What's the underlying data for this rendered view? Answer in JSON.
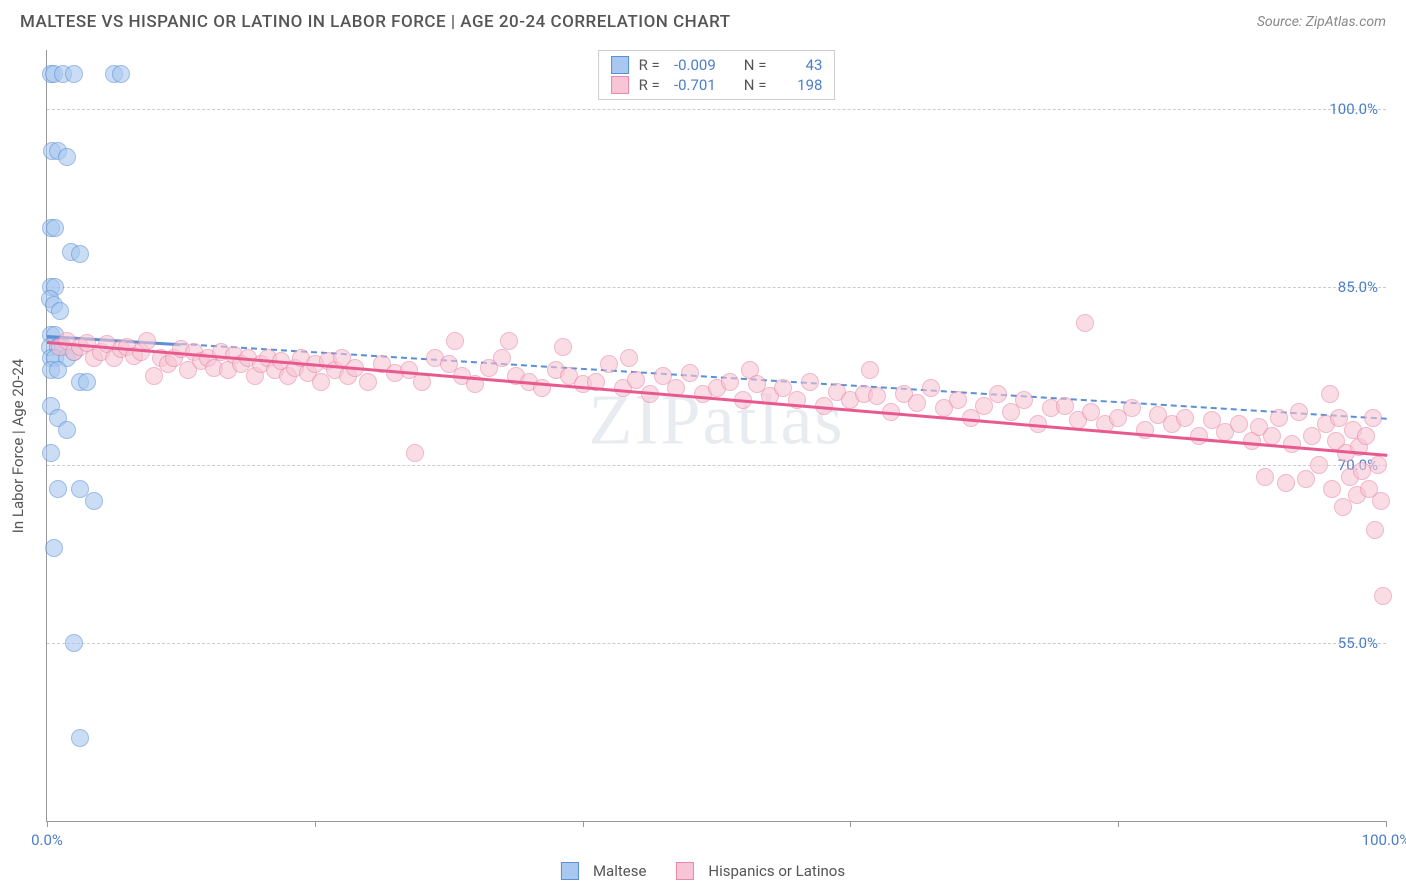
{
  "header": {
    "title": "MALTESE VS HISPANIC OR LATINO IN LABOR FORCE | AGE 20-24 CORRELATION CHART",
    "source": "Source: ZipAtlas.com"
  },
  "chart": {
    "type": "scatter",
    "y_axis_label": "In Labor Force | Age 20-24",
    "xlim": [
      0,
      100
    ],
    "ylim": [
      40,
      105
    ],
    "x_ticks": [
      0,
      20,
      40,
      60,
      80,
      100
    ],
    "x_tick_labels": {
      "0": "0.0%",
      "100": "100.0%"
    },
    "y_gridlines": [
      55,
      70,
      85,
      100
    ],
    "y_tick_labels": {
      "55": "55.0%",
      "70": "70.0%",
      "85": "85.0%",
      "100": "100.0%"
    },
    "background_color": "#ffffff",
    "grid_color": "#cccccc",
    "axis_color": "#999999",
    "tick_label_color": "#4a7ec9",
    "watermark_text": "ZIPatlas",
    "series": [
      {
        "name": "Maltese",
        "fill_color": "#a8c8f0",
        "stroke_color": "#5b8fd6",
        "R": "-0.009",
        "N": "43",
        "trend": {
          "x1": 0,
          "y1": 81,
          "x2": 100,
          "y2": 74,
          "dashed": true,
          "solid_until_x": 10,
          "color": "#5b8fd6"
        },
        "points": [
          [
            0.3,
            103
          ],
          [
            0.5,
            103
          ],
          [
            1.2,
            103
          ],
          [
            2,
            103
          ],
          [
            5,
            103
          ],
          [
            5.5,
            103
          ],
          [
            0.4,
            96.5
          ],
          [
            0.8,
            96.5
          ],
          [
            1.5,
            96
          ],
          [
            0.3,
            90
          ],
          [
            0.6,
            90
          ],
          [
            1.8,
            88
          ],
          [
            2.5,
            87.8
          ],
          [
            0.3,
            85
          ],
          [
            0.6,
            85
          ],
          [
            0.2,
            84
          ],
          [
            0.5,
            83.5
          ],
          [
            1,
            83
          ],
          [
            0.3,
            81
          ],
          [
            0.6,
            81
          ],
          [
            0.2,
            80
          ],
          [
            0.8,
            80
          ],
          [
            1.2,
            80
          ],
          [
            0.3,
            79
          ],
          [
            0.6,
            79
          ],
          [
            1.5,
            79
          ],
          [
            2,
            79.5
          ],
          [
            0.3,
            78
          ],
          [
            0.8,
            78
          ],
          [
            2.5,
            77
          ],
          [
            3,
            77
          ],
          [
            0.3,
            75
          ],
          [
            0.8,
            74
          ],
          [
            1.5,
            73
          ],
          [
            0.3,
            71
          ],
          [
            0.8,
            68
          ],
          [
            2.5,
            68
          ],
          [
            3.5,
            67
          ],
          [
            0.5,
            63
          ],
          [
            2,
            55
          ],
          [
            2.5,
            47
          ]
        ]
      },
      {
        "name": "Hispanics or Latinos",
        "fill_color": "#f7c5d5",
        "stroke_color": "#e888aa",
        "R": "-0.701",
        "N": "198",
        "trend": {
          "x1": 0,
          "y1": 80.5,
          "x2": 100,
          "y2": 71,
          "dashed": false,
          "color": "#e85a8f"
        },
        "points": [
          [
            1,
            80
          ],
          [
            1.5,
            80.5
          ],
          [
            2,
            79.5
          ],
          [
            2.5,
            80
          ],
          [
            3,
            80.3
          ],
          [
            3.5,
            79
          ],
          [
            4,
            79.5
          ],
          [
            4.5,
            80.2
          ],
          [
            5,
            79
          ],
          [
            5.5,
            79.8
          ],
          [
            6,
            80
          ],
          [
            6.5,
            79.2
          ],
          [
            7,
            79.5
          ],
          [
            7.5,
            80.5
          ],
          [
            8,
            77.5
          ],
          [
            8.5,
            79
          ],
          [
            9,
            78.5
          ],
          [
            9.5,
            79
          ],
          [
            10,
            79.8
          ],
          [
            10.5,
            78
          ],
          [
            11,
            79.5
          ],
          [
            11.5,
            78.8
          ],
          [
            12,
            79
          ],
          [
            12.5,
            78.2
          ],
          [
            13,
            79.5
          ],
          [
            13.5,
            78
          ],
          [
            14,
            79.3
          ],
          [
            14.5,
            78.5
          ],
          [
            15,
            79
          ],
          [
            15.5,
            77.5
          ],
          [
            16,
            78.5
          ],
          [
            16.5,
            79
          ],
          [
            17,
            78
          ],
          [
            17.5,
            78.8
          ],
          [
            18,
            77.5
          ],
          [
            18.5,
            78.2
          ],
          [
            19,
            79
          ],
          [
            19.5,
            77.8
          ],
          [
            20,
            78.5
          ],
          [
            20.5,
            77
          ],
          [
            21,
            78.8
          ],
          [
            21.5,
            78
          ],
          [
            22,
            79
          ],
          [
            22.5,
            77.5
          ],
          [
            23,
            78.2
          ],
          [
            24,
            77
          ],
          [
            25,
            78.5
          ],
          [
            26,
            77.8
          ],
          [
            27,
            78
          ],
          [
            27.5,
            71
          ],
          [
            28,
            77
          ],
          [
            29,
            79
          ],
          [
            30,
            78.5
          ],
          [
            30.5,
            80.5
          ],
          [
            31,
            77.5
          ],
          [
            32,
            76.8
          ],
          [
            33,
            78.2
          ],
          [
            34,
            79
          ],
          [
            34.5,
            80.5
          ],
          [
            35,
            77.5
          ],
          [
            36,
            77
          ],
          [
            37,
            76.5
          ],
          [
            38,
            78
          ],
          [
            38.5,
            80
          ],
          [
            39,
            77.5
          ],
          [
            40,
            76.8
          ],
          [
            41,
            77
          ],
          [
            42,
            78.5
          ],
          [
            43,
            76.5
          ],
          [
            43.5,
            79
          ],
          [
            44,
            77.2
          ],
          [
            45,
            76
          ],
          [
            46,
            77.5
          ],
          [
            47,
            76.5
          ],
          [
            48,
            77.8
          ],
          [
            49,
            76
          ],
          [
            50,
            76.5
          ],
          [
            51,
            77
          ],
          [
            52,
            75.5
          ],
          [
            52.5,
            78
          ],
          [
            53,
            76.8
          ],
          [
            54,
            75.8
          ],
          [
            55,
            76.5
          ],
          [
            56,
            75.5
          ],
          [
            57,
            77
          ],
          [
            58,
            75
          ],
          [
            59,
            76.2
          ],
          [
            60,
            75.5
          ],
          [
            61,
            76
          ],
          [
            61.5,
            78
          ],
          [
            62,
            75.8
          ],
          [
            63,
            74.5
          ],
          [
            64,
            76
          ],
          [
            65,
            75.2
          ],
          [
            66,
            76.5
          ],
          [
            67,
            74.8
          ],
          [
            68,
            75.5
          ],
          [
            69,
            74
          ],
          [
            70,
            75
          ],
          [
            71,
            76
          ],
          [
            72,
            74.5
          ],
          [
            73,
            75.5
          ],
          [
            74,
            73.5
          ],
          [
            75,
            74.8
          ],
          [
            76,
            75
          ],
          [
            77,
            73.8
          ],
          [
            77.5,
            82
          ],
          [
            78,
            74.5
          ],
          [
            79,
            73.5
          ],
          [
            80,
            74
          ],
          [
            81,
            74.8
          ],
          [
            82,
            73
          ],
          [
            83,
            74.2
          ],
          [
            84,
            73.5
          ],
          [
            85,
            74
          ],
          [
            86,
            72.5
          ],
          [
            87,
            73.8
          ],
          [
            88,
            72.8
          ],
          [
            89,
            73.5
          ],
          [
            90,
            72
          ],
          [
            90.5,
            73.2
          ],
          [
            91,
            69
          ],
          [
            91.5,
            72.5
          ],
          [
            92,
            74
          ],
          [
            92.5,
            68.5
          ],
          [
            93,
            71.8
          ],
          [
            93.5,
            74.5
          ],
          [
            94,
            68.8
          ],
          [
            94.5,
            72.5
          ],
          [
            95,
            70
          ],
          [
            95.5,
            73.5
          ],
          [
            95.8,
            76
          ],
          [
            96,
            68
          ],
          [
            96.3,
            72
          ],
          [
            96.5,
            74
          ],
          [
            96.8,
            66.5
          ],
          [
            97,
            71
          ],
          [
            97.3,
            69
          ],
          [
            97.5,
            73
          ],
          [
            97.8,
            67.5
          ],
          [
            98,
            71.5
          ],
          [
            98.2,
            69.5
          ],
          [
            98.5,
            72.5
          ],
          [
            98.7,
            68
          ],
          [
            99,
            74
          ],
          [
            99.2,
            64.5
          ],
          [
            99.4,
            70
          ],
          [
            99.6,
            67
          ],
          [
            99.8,
            59
          ]
        ]
      }
    ]
  },
  "bottom_legend": [
    {
      "label": "Maltese",
      "fill": "#a8c8f0",
      "stroke": "#5b8fd6"
    },
    {
      "label": "Hispanics or Latinos",
      "fill": "#f7c5d5",
      "stroke": "#e888aa"
    }
  ]
}
